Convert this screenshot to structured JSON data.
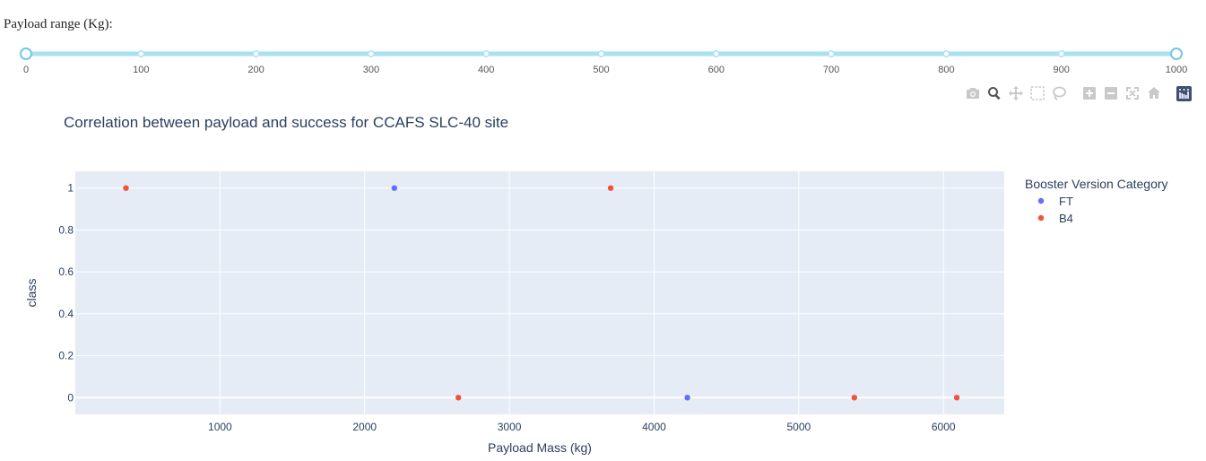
{
  "slider": {
    "label": "Payload range (Kg):",
    "min": 0,
    "max": 1000,
    "selected": [
      0,
      1000
    ],
    "ticks": [
      0,
      100,
      200,
      300,
      400,
      500,
      600,
      700,
      800,
      900,
      1000
    ],
    "track_color": "#a8e1f3",
    "handle_color": "#74c7e3"
  },
  "modebar": {
    "buttons": [
      "camera-icon",
      "zoom-icon",
      "pan-icon",
      "box-select-icon",
      "lasso-icon",
      "zoom-in-icon",
      "zoom-out-icon",
      "autoscale-icon",
      "reset-axes-icon",
      "plotly-logo-icon"
    ],
    "active": "zoom-icon"
  },
  "chart_data": {
    "type": "scatter",
    "title": "Correlation between payload and success for CCAFS SLC-40 site",
    "xlabel": "Payload Mass (kg)",
    "ylabel": "class",
    "xlim": [
      0,
      6420
    ],
    "ylim": [
      -0.08,
      1.08
    ],
    "xticks": [
      1000,
      2000,
      3000,
      4000,
      5000,
      6000
    ],
    "yticks": [
      0,
      0.2,
      0.4,
      0.6,
      0.8,
      1
    ],
    "grid": true,
    "background": "#e5ecf6",
    "legend": {
      "title": "Booster Version Category",
      "placement": "top-right"
    },
    "series": [
      {
        "name": "FT",
        "color": "#636efa",
        "points": [
          {
            "x": 2205,
            "y": 1
          },
          {
            "x": 4230,
            "y": 0
          }
        ]
      },
      {
        "name": "B4",
        "color": "#ef553b",
        "points": [
          {
            "x": 350,
            "y": 1
          },
          {
            "x": 3700,
            "y": 1
          },
          {
            "x": 2647,
            "y": 0
          },
          {
            "x": 5384,
            "y": 0
          },
          {
            "x": 6092,
            "y": 0
          }
        ]
      }
    ]
  }
}
